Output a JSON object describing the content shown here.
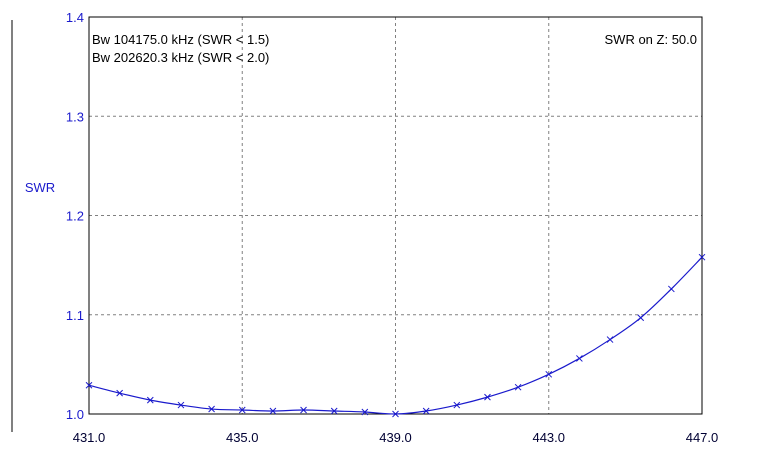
{
  "chart_data": {
    "type": "line",
    "title": "",
    "xlabel": "",
    "ylabel": "SWR",
    "xlim": [
      431.0,
      447.0
    ],
    "ylim": [
      1.0,
      1.4
    ],
    "x_ticks": [
      431.0,
      435.0,
      439.0,
      443.0,
      447.0
    ],
    "x_tick_labels": [
      "431.0",
      "435.0",
      "439.0",
      "443.0",
      "447.0"
    ],
    "y_ticks": [
      1.0,
      1.1,
      1.2,
      1.3,
      1.4
    ],
    "y_tick_labels": [
      "1.0",
      "1.1",
      "1.2",
      "1.3",
      "1.4"
    ],
    "grid": true,
    "annotations": {
      "bw1": "Bw 104175.0 kHz (SWR < 1.5)",
      "bw2": "Bw 202620.3 kHz (SWR < 2.0)",
      "z": "SWR on Z: 50.0"
    },
    "series": [
      {
        "x": [
          431.0,
          431.8,
          432.6,
          433.4,
          434.2,
          435.0,
          435.8,
          436.6,
          437.4,
          438.2,
          439.0,
          439.8,
          440.6,
          441.4,
          442.2,
          443.0,
          443.8,
          444.6,
          445.4,
          446.2,
          447.0
        ],
        "values": [
          1.029,
          1.021,
          1.014,
          1.009,
          1.005,
          1.004,
          1.003,
          1.004,
          1.003,
          1.002,
          1.0,
          1.003,
          1.009,
          1.017,
          1.027,
          1.04,
          1.056,
          1.075,
          1.097,
          1.126,
          1.158
        ],
        "color": "#1a1acc",
        "marker": "x"
      }
    ],
    "colors": {
      "series": "#1a1acc",
      "axis_text": "#1a1acc",
      "tick_text": "#000033",
      "grid": "#808080",
      "frame": "#000000"
    }
  }
}
